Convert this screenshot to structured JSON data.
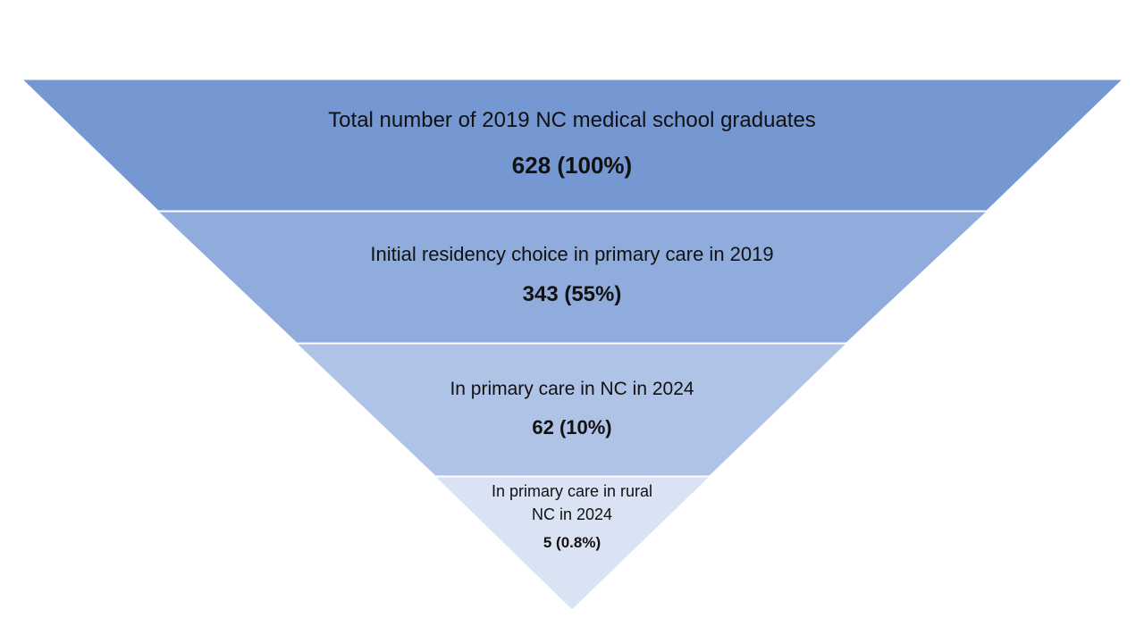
{
  "funnel": {
    "tiers": [
      {
        "label": "Total number of 2019 NC medical school graduates",
        "value_text": "628 (100%)",
        "count": 628,
        "percent": 100,
        "color": "#7597D2"
      },
      {
        "label": "Initial residency choice in primary care in 2019",
        "value_text": "343 (55%)",
        "count": 343,
        "percent": 55,
        "color": "#8FACDC"
      },
      {
        "label": "In primary care in NC in 2024",
        "value_text": "62 (10%)",
        "count": 62,
        "percent": 10,
        "color": "#AFC3E6"
      },
      {
        "label": "In primary care in rural NC in 2024",
        "value_text": "5 (0.8%)",
        "count": 5,
        "percent": 0.8,
        "color": "#DAE3F3"
      }
    ]
  }
}
